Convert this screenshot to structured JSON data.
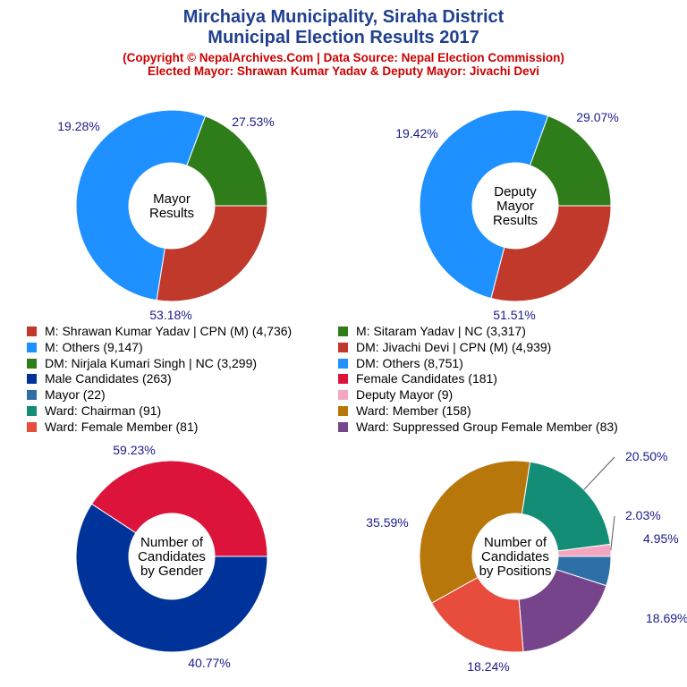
{
  "header": {
    "title_line1": "Mirchaiya Municipality, Siraha District",
    "title_line2": "Municipal Election Results 2017",
    "subtitle_line1": "(Copyright © NepalArchives.Com | Data Source: Nepal Election Commission)",
    "subtitle_line2": "Elected Mayor: Shrawan Kumar Yadav & Deputy Mayor: Jivachi Devi"
  },
  "legend": [
    {
      "label": "M: Shrawan Kumar Yadav | CPN (M) (4,736)",
      "color": "#c0392b"
    },
    {
      "label": "M: Sitaram Yadav | NC (3,317)",
      "color": "#2e7d1a"
    },
    {
      "label": "M: Others (9,147)",
      "color": "#1e90ff"
    },
    {
      "label": "DM: Jivachi Devi | CPN (M) (4,939)",
      "color": "#c0392b"
    },
    {
      "label": "DM: Nirjala Kumari Singh | NC (3,299)",
      "color": "#2e7d1a"
    },
    {
      "label": "DM: Others (8,751)",
      "color": "#1e90ff"
    },
    {
      "label": "Male Candidates (263)",
      "color": "#003399"
    },
    {
      "label": "Female Candidates (181)",
      "color": "#dc143c"
    },
    {
      "label": "Mayor (22)",
      "color": "#2e6fa7"
    },
    {
      "label": "Deputy Mayor (9)",
      "color": "#f4a6c0"
    },
    {
      "label": "Ward: Chairman (91)",
      "color": "#138d75"
    },
    {
      "label": "Ward: Member (158)",
      "color": "#b8770b"
    },
    {
      "label": "Ward: Female Member (81)",
      "color": "#e74c3c"
    },
    {
      "label": "Ward: Suppressed Group Female Member (83)",
      "color": "#76448a"
    }
  ],
  "chart_data": [
    {
      "type": "pie",
      "center_label": [
        "Mayor",
        "Results"
      ],
      "slices": [
        {
          "label": "M: Shrawan Kumar Yadav | CPN (M)",
          "value": 4736,
          "percent_label": "27.53%",
          "color": "#c0392b"
        },
        {
          "label": "M: Others",
          "value": 9147,
          "percent_label": "53.18%",
          "color": "#1e90ff"
        },
        {
          "label": "M: Sitaram Yadav | NC",
          "value": 3317,
          "percent_label": "19.28%",
          "color": "#2e7d1a"
        }
      ]
    },
    {
      "type": "pie",
      "center_label": [
        "Deputy",
        "Mayor",
        "Results"
      ],
      "slices": [
        {
          "label": "DM: Jivachi Devi | CPN (M)",
          "value": 4939,
          "percent_label": "29.07%",
          "color": "#c0392b"
        },
        {
          "label": "DM: Others",
          "value": 8751,
          "percent_label": "51.51%",
          "color": "#1e90ff"
        },
        {
          "label": "DM: Nirjala Kumari Singh | NC",
          "value": 3299,
          "percent_label": "19.42%",
          "color": "#2e7d1a"
        }
      ]
    },
    {
      "type": "pie",
      "center_label": [
        "Number of",
        "Candidates",
        "by Gender"
      ],
      "slices": [
        {
          "label": "Male Candidates",
          "value": 263,
          "percent_label": "59.23%",
          "color": "#003399"
        },
        {
          "label": "Female Candidates",
          "value": 181,
          "percent_label": "40.77%",
          "color": "#dc143c"
        }
      ]
    },
    {
      "type": "pie",
      "center_label": [
        "Number of",
        "Candidates",
        "by Positions"
      ],
      "slices": [
        {
          "label": "Mayor",
          "value": 22,
          "percent_label": "4.95%",
          "color": "#2e6fa7"
        },
        {
          "label": "Ward: Suppressed Group Female Member",
          "value": 83,
          "percent_label": "18.69%",
          "color": "#76448a"
        },
        {
          "label": "Ward: Female Member",
          "value": 81,
          "percent_label": "18.24%",
          "color": "#e74c3c"
        },
        {
          "label": "Ward: Member",
          "value": 158,
          "percent_label": "35.59%",
          "color": "#b8770b"
        },
        {
          "label": "Ward: Chairman",
          "value": 91,
          "percent_label": "20.50%",
          "color": "#138d75"
        },
        {
          "label": "Deputy Mayor",
          "value": 9,
          "percent_label": "2.03%",
          "color": "#f4a6c0"
        }
      ]
    }
  ]
}
